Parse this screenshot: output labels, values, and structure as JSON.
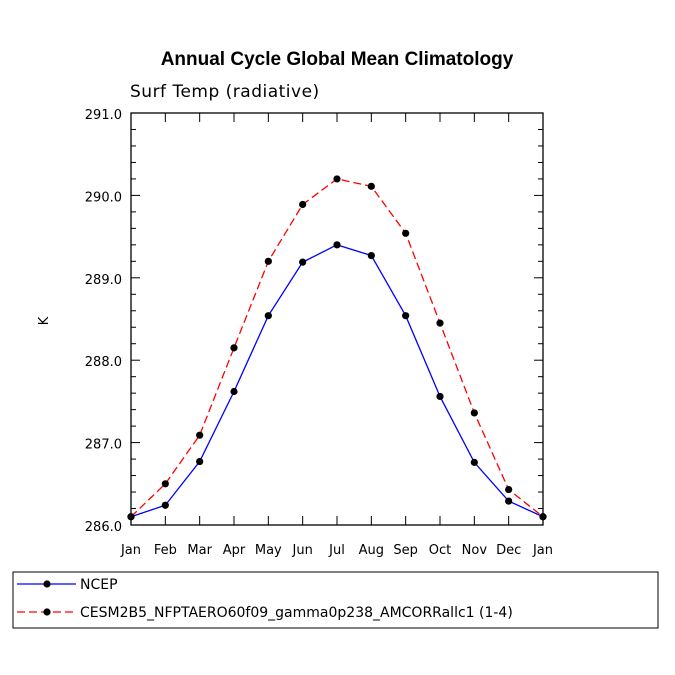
{
  "chart_data": {
    "type": "line",
    "title": "Annual Cycle Global Mean Climatology",
    "subtitle": "Surf Temp (radiative)",
    "xlabel": "",
    "ylabel": "K",
    "categories": [
      "Jan",
      "Feb",
      "Mar",
      "Apr",
      "May",
      "Jun",
      "Jul",
      "Aug",
      "Sep",
      "Oct",
      "Nov",
      "Dec",
      "Jan"
    ],
    "ylim": [
      286.0,
      291.0
    ],
    "yticks": [
      "286.0",
      "287.0",
      "288.0",
      "289.0",
      "290.0",
      "291.0"
    ],
    "series": [
      {
        "name": "NCEP",
        "color": "#0000ff",
        "dash": "solid",
        "values": [
          286.1,
          286.24,
          286.77,
          287.62,
          288.54,
          289.19,
          289.4,
          289.27,
          288.54,
          287.56,
          286.76,
          286.29,
          286.1
        ]
      },
      {
        "name": "CESM2B5_NFPTAERO60f09_gamma0p238_AMCORRallc1 (1-4)",
        "color": "#ff0000",
        "dash": "dashed",
        "values": [
          286.1,
          286.5,
          287.09,
          288.15,
          289.2,
          289.89,
          290.2,
          290.11,
          289.54,
          288.45,
          287.36,
          286.43,
          286.1
        ]
      }
    ],
    "grid": false,
    "legend_position": "bottom-left"
  }
}
